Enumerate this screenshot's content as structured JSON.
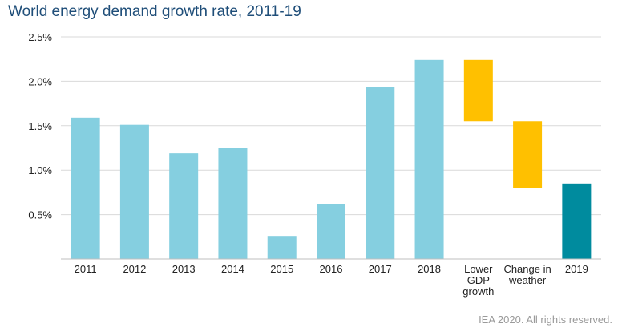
{
  "title": "World energy demand growth rate, 2011-19",
  "credit": "IEA 2020. All rights reserved.",
  "colors": {
    "bar": "#85cfe0",
    "waterfall": "#ffc000",
    "final": "#008b9e",
    "title": "#1f4e79",
    "grid": "#d9d9d9"
  },
  "chart_data": {
    "type": "bar",
    "subtype": "waterfall",
    "title": "World energy demand growth rate, 2011-19",
    "xlabel": "",
    "ylabel": "",
    "ylim": [
      0,
      2.5
    ],
    "yticks": [
      "",
      "0.5%",
      "1.0%",
      "1.5%",
      "2.0%",
      "2.5%"
    ],
    "ytick_values": [
      0,
      0.5,
      1.0,
      1.5,
      2.0,
      2.5
    ],
    "grid": true,
    "legend": "none",
    "bars": [
      {
        "label": [
          "2011"
        ],
        "start": 0,
        "end": 1.59,
        "kind": "bar"
      },
      {
        "label": [
          "2012"
        ],
        "start": 0,
        "end": 1.51,
        "kind": "bar"
      },
      {
        "label": [
          "2013"
        ],
        "start": 0,
        "end": 1.19,
        "kind": "bar"
      },
      {
        "label": [
          "2014"
        ],
        "start": 0,
        "end": 1.25,
        "kind": "bar"
      },
      {
        "label": [
          "2015"
        ],
        "start": 0,
        "end": 0.26,
        "kind": "bar"
      },
      {
        "label": [
          "2016"
        ],
        "start": 0,
        "end": 0.62,
        "kind": "bar"
      },
      {
        "label": [
          "2017"
        ],
        "start": 0,
        "end": 1.94,
        "kind": "bar"
      },
      {
        "label": [
          "2018"
        ],
        "start": 0,
        "end": 2.24,
        "kind": "bar"
      },
      {
        "label": [
          "Lower",
          "GDP",
          "growth"
        ],
        "start": 2.24,
        "end": 1.55,
        "kind": "waterfall"
      },
      {
        "label": [
          "Change in",
          "weather"
        ],
        "start": 1.55,
        "end": 0.8,
        "kind": "waterfall"
      },
      {
        "label": [
          "2019"
        ],
        "start": 0,
        "end": 0.85,
        "kind": "final"
      }
    ]
  }
}
